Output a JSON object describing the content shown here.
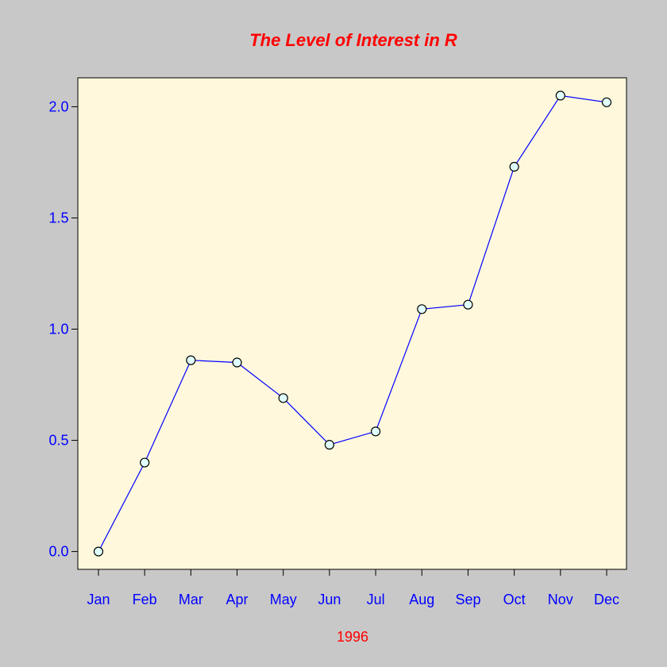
{
  "chart_data": {
    "type": "line",
    "title": "The Level of Interest in R",
    "xlabel": "1996",
    "ylabel": "",
    "categories": [
      "Jan",
      "Feb",
      "Mar",
      "Apr",
      "May",
      "Jun",
      "Jul",
      "Aug",
      "Sep",
      "Oct",
      "Nov",
      "Dec"
    ],
    "values": [
      0.0,
      0.4,
      0.86,
      0.85,
      0.69,
      0.48,
      0.54,
      1.09,
      1.11,
      1.73,
      2.05,
      2.02
    ],
    "ylim": [
      -0.08,
      2.13
    ],
    "yticks": [
      0.0,
      0.5,
      1.0,
      1.5,
      2.0
    ],
    "ytick_labels": [
      "0.0",
      "0.5",
      "1.0",
      "1.5",
      "2.0"
    ],
    "grid": false,
    "colors": {
      "background": "#c8c8c8",
      "plot_background": "#fff8dc",
      "line": "#0000ff",
      "marker_fill": "#e0ffff",
      "marker_stroke": "#000000",
      "title": "#ff0000",
      "xlabel": "#ff0000",
      "tick_labels": "#0000ff",
      "axis": "#000000"
    }
  }
}
